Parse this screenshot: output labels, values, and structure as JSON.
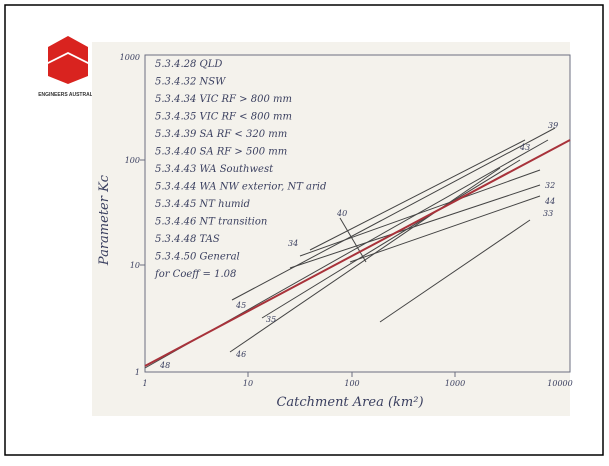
{
  "logo": {
    "text": "ENGINEERS AUSTRALIA"
  },
  "chart_image": {
    "y_axis_label": "Parameter Kc",
    "x_axis_label": "Catchment Area (km²)",
    "y_ticks": [
      "1000",
      "100",
      "10",
      "1"
    ],
    "x_ticks": [
      "1",
      "10",
      "100",
      "1000",
      "10000"
    ],
    "legend": [
      "5.3.4.28  QLD",
      "5.3.4.32  NSW",
      "5.3.4.34  VIC  RF > 800 mm",
      "5.3.4.35  VIC  RF < 800 mm",
      "5.3.4.39  SA  RF < 320 mm",
      "5.3.4.40  SA  RF > 500 mm",
      "5.3.4.43  WA  Southwest",
      "5.3.4.44  WA  NW exterior, NT arid",
      "5.3.4.45  NT  humid",
      "5.3.4.46  NT  transition",
      "5.3.4.48  TAS",
      "5.3.4.50  General",
      "for Coeff = 1.08"
    ],
    "line_labels": [
      "39",
      "43",
      "32",
      "44",
      "33",
      "40",
      "34",
      "45",
      "35",
      "46",
      "48"
    ]
  }
}
